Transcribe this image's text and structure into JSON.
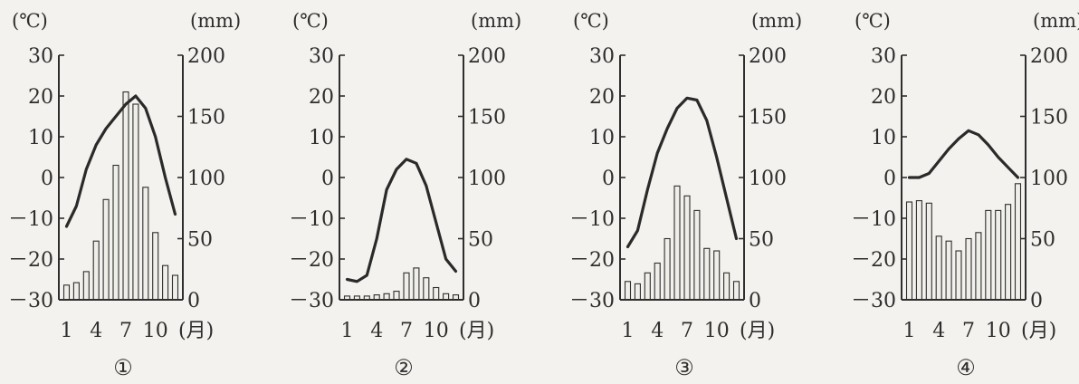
{
  "chart_data": [
    {
      "type": "bar+line",
      "label": "①",
      "temp_unit": "(℃)",
      "precip_unit": "(mm)",
      "month_unit": "(月)",
      "x_tick_labels": [
        "1",
        "4",
        "7",
        "10"
      ],
      "temp_ticks": [
        "30",
        "20",
        "10",
        "0",
        "－10",
        "－20",
        "－30"
      ],
      "precip_ticks": [
        "200",
        "150",
        "100",
        "50",
        "0"
      ],
      "temp_range": [
        -30,
        30
      ],
      "precip_range": [
        0,
        200
      ],
      "months": [
        1,
        2,
        3,
        4,
        5,
        6,
        7,
        8,
        9,
        10,
        11,
        12
      ],
      "temperature": [
        -12,
        -7,
        2,
        8,
        12,
        15,
        18,
        20,
        17,
        10,
        0,
        -9
      ],
      "precipitation": [
        12,
        14,
        23,
        48,
        82,
        110,
        170,
        160,
        92,
        55,
        28,
        20
      ]
    },
    {
      "type": "bar+line",
      "label": "②",
      "temp_unit": "(℃)",
      "precip_unit": "(mm)",
      "month_unit": "(月)",
      "x_tick_labels": [
        "1",
        "4",
        "7",
        "10"
      ],
      "temp_ticks": [
        "30",
        "20",
        "10",
        "0",
        "－10",
        "－20",
        "－30"
      ],
      "precip_ticks": [
        "200",
        "150",
        "100",
        "50",
        "0"
      ],
      "temp_range": [
        -30,
        30
      ],
      "precip_range": [
        0,
        200
      ],
      "months": [
        1,
        2,
        3,
        4,
        5,
        6,
        7,
        8,
        9,
        10,
        11,
        12
      ],
      "temperature": [
        -25,
        -25.5,
        -24,
        -15,
        -3,
        2,
        4.5,
        3.5,
        -2,
        -11,
        -20,
        -23
      ],
      "precipitation": [
        3,
        3,
        3,
        4,
        5,
        7,
        22,
        26,
        18,
        10,
        5,
        4
      ]
    },
    {
      "type": "bar+line",
      "label": "③",
      "temp_unit": "(℃)",
      "precip_unit": "(mm)",
      "month_unit": "(月)",
      "x_tick_labels": [
        "1",
        "4",
        "7",
        "10"
      ],
      "temp_ticks": [
        "30",
        "20",
        "10",
        "0",
        "－10",
        "－20",
        "－30"
      ],
      "precip_ticks": [
        "200",
        "150",
        "100",
        "50",
        "0"
      ],
      "temp_range": [
        -30,
        30
      ],
      "precip_range": [
        0,
        200
      ],
      "months": [
        1,
        2,
        3,
        4,
        5,
        6,
        7,
        8,
        9,
        10,
        11,
        12
      ],
      "temperature": [
        -17,
        -13,
        -3,
        6,
        12,
        17,
        19.5,
        19,
        14,
        5,
        -5,
        -15
      ],
      "precipitation": [
        15,
        13,
        22,
        30,
        50,
        93,
        85,
        73,
        42,
        40,
        22,
        15
      ]
    },
    {
      "type": "bar+line",
      "label": "④",
      "temp_unit": "(℃)",
      "precip_unit": "(mm)",
      "month_unit": "(月)",
      "x_tick_labels": [
        "1",
        "4",
        "7",
        "10"
      ],
      "temp_ticks": [
        "30",
        "20",
        "10",
        "0",
        "－10",
        "－20",
        "－30"
      ],
      "precip_ticks": [
        "200",
        "150",
        "100",
        "50",
        "0"
      ],
      "temp_range": [
        -30,
        30
      ],
      "precip_range": [
        0,
        200
      ],
      "months": [
        1,
        2,
        3,
        4,
        5,
        6,
        7,
        8,
        9,
        10,
        11,
        12
      ],
      "temperature": [
        0,
        0,
        1,
        4,
        7,
        9.5,
        11.5,
        10.5,
        8,
        5,
        2.5,
        0
      ],
      "precipitation": [
        80,
        81,
        79,
        52,
        48,
        40,
        50,
        55,
        73,
        73,
        78,
        95
      ]
    }
  ]
}
